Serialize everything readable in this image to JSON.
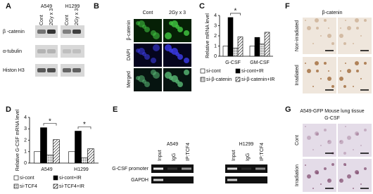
{
  "panels": {
    "A": {
      "label": "A",
      "cell_lines": [
        "A549",
        "H1299"
      ],
      "conditions": [
        "Cont",
        "2Gy x 3"
      ],
      "rows": [
        "β -catenin",
        "α-tubulin",
        "Histon H3"
      ]
    },
    "B": {
      "label": "B",
      "columns": [
        "Cont",
        "2Gy x 3"
      ],
      "rows": [
        "β-catenin",
        "DAPI",
        "Merged"
      ]
    },
    "E": {
      "label": "E",
      "cell_lines": [
        "A549",
        "H1299"
      ],
      "lanes": [
        "Input",
        "IgG",
        "IP:TCF4"
      ],
      "rows": [
        "G-CSF promoter",
        "GAPDH"
      ]
    },
    "F": {
      "label": "F",
      "title": "β-catenin",
      "rows": [
        "Non-irradiated",
        "Irradiated"
      ]
    },
    "G": {
      "label": "G",
      "title": "A549-GFP Mouse lung tissue",
      "subtitle": "G-CSF",
      "rows": [
        "Cont",
        "Irradiation"
      ]
    }
  },
  "chart_data": [
    {
      "type": "bar",
      "label": "C",
      "y_label": "Relative mRNA level",
      "categories": [
        "G-CSF",
        "GM-CSF"
      ],
      "series": [
        {
          "name": "si-cont",
          "color": "#ffffff",
          "values": [
            1,
            1
          ]
        },
        {
          "name": "si-cont+IR",
          "color": "#000000",
          "values": [
            3.8,
            1.85
          ]
        },
        {
          "name": "si-β-catenin",
          "color": "#ffffff",
          "pattern": "dots",
          "values": [
            0.8,
            1.2
          ]
        },
        {
          "name": "si-β-catenin+IR",
          "color": "#ffffff",
          "pattern": "hatch",
          "values": [
            1.9,
            2.35
          ]
        }
      ],
      "ylim": [
        0,
        4
      ],
      "yticks": [
        0,
        1,
        2,
        3,
        4
      ],
      "annotations": [
        {
          "text": "*",
          "category": 0,
          "series_from": 1,
          "series_to": 3
        }
      ]
    },
    {
      "type": "bar",
      "label": "D",
      "y_label": "Relative G-CSF mRNA level",
      "categories": [
        "A549",
        "H1299"
      ],
      "series": [
        {
          "name": "si-cont",
          "color": "#ffffff",
          "values": [
            1,
            1
          ]
        },
        {
          "name": "si-cont+IR",
          "color": "#000000",
          "values": [
            3.1,
            2.8
          ]
        },
        {
          "name": "si-TCF4",
          "color": "#ffffff",
          "pattern": "dots",
          "values": [
            0.7,
            0.45
          ]
        },
        {
          "name": "si-TCF4+IR",
          "color": "#ffffff",
          "pattern": "hatch",
          "values": [
            2.05,
            1.25
          ]
        }
      ],
      "ylim": [
        0,
        4
      ],
      "yticks": [
        0,
        1,
        2,
        3,
        4
      ],
      "annotations": [
        {
          "text": "*",
          "category": 0,
          "series_from": 1,
          "series_to": 3
        },
        {
          "text": "*",
          "category": 1,
          "series_from": 1,
          "series_to": 3
        }
      ]
    }
  ]
}
